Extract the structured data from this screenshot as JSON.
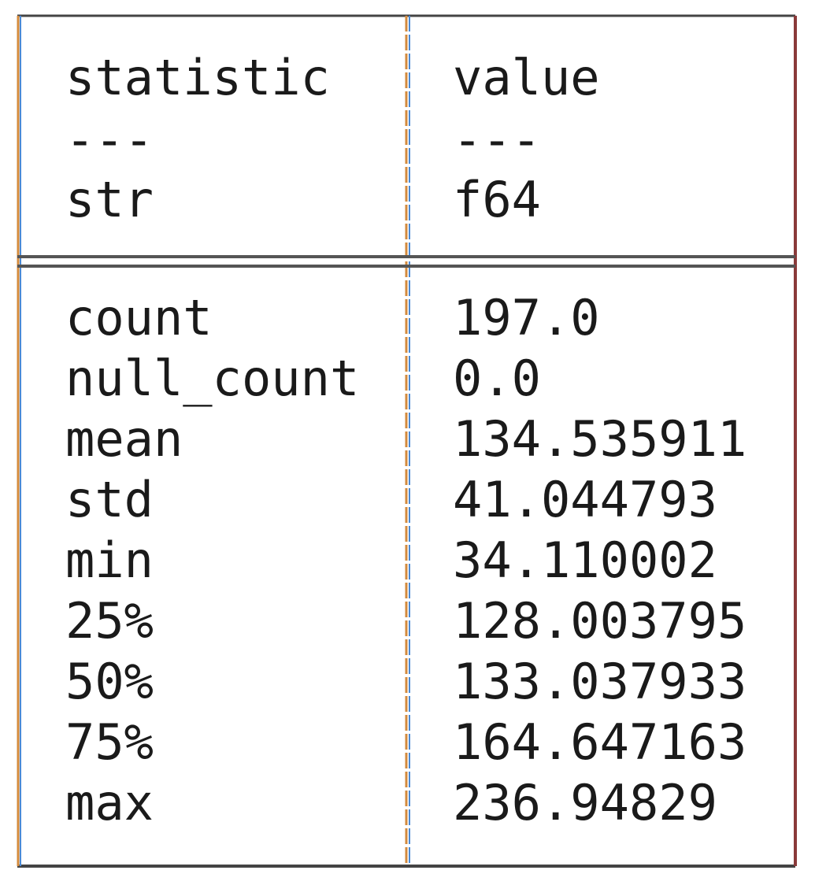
{
  "table": {
    "columns": [
      {
        "name": "statistic",
        "separator": "---",
        "dtype": "str"
      },
      {
        "name": "value",
        "separator": "---",
        "dtype": "f64"
      }
    ],
    "rows": [
      [
        "count",
        "197.0"
      ],
      [
        "null_count",
        "0.0"
      ],
      [
        "mean",
        "134.535911"
      ],
      [
        "std",
        "41.044793"
      ],
      [
        "min",
        "34.110002"
      ],
      [
        "25%",
        "128.003795"
      ],
      [
        "50%",
        "133.037933"
      ],
      [
        "75%",
        "164.647163"
      ],
      [
        "max",
        "236.94829"
      ]
    ]
  }
}
